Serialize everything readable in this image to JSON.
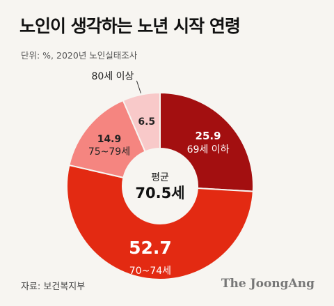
{
  "title": "노인이 생각하는 노년 시작 연령",
  "subtitle": "단위: %, 2020년 노인실태조사",
  "source": "자료: 보건복지부",
  "brand": "The JoongAng",
  "chart_data": {
    "type": "pie",
    "donut": true,
    "categories": [
      "69세 이하",
      "70~74세",
      "75~79세",
      "80세 이상"
    ],
    "values": [
      25.9,
      52.7,
      14.9,
      6.5
    ],
    "value_labels": [
      "25.9",
      "52.7",
      "14.9",
      "6.5"
    ],
    "colors": [
      "#a30f10",
      "#e32a12",
      "#f58580",
      "#f8c9c9"
    ],
    "center_label": "평균",
    "center_value": "70.5세"
  }
}
